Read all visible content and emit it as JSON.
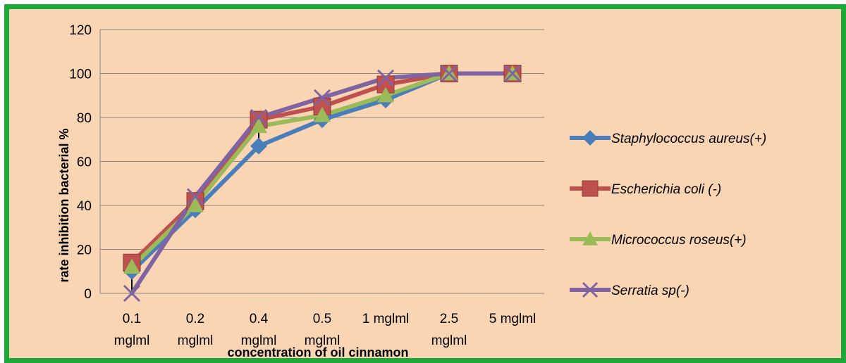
{
  "chart_data": {
    "type": "line",
    "title": "",
    "xlabel": "concentration of oil cinnamon",
    "ylabel": "rate inhibition bacterial %",
    "categories": [
      [
        "0.1",
        "mglml"
      ],
      [
        "0.2",
        "mglml"
      ],
      [
        "0.4",
        "mglml"
      ],
      [
        "0.5",
        "mglml"
      ],
      [
        "1 mglml"
      ],
      [
        "2.5",
        "mglml"
      ],
      [
        "5 mglml"
      ]
    ],
    "yticks": [
      "0",
      "20",
      "40",
      "60",
      "80",
      "100",
      "120"
    ],
    "ylim": [
      0,
      120
    ],
    "grid": true,
    "legend_position": "right",
    "series": [
      {
        "name": "Staphylococcus aureus(+)",
        "color": "#4a7ebb",
        "marker": "diamond",
        "values": [
          10,
          38,
          67,
          79,
          88,
          100,
          100
        ]
      },
      {
        "name": "Escherichia coli  (-)",
        "color": "#c0504d",
        "marker": "square",
        "values": [
          14,
          42,
          79,
          85,
          95,
          100,
          100
        ]
      },
      {
        "name": "Micrococcus roseus(+)",
        "color": "#9bbb59",
        "marker": "triangle",
        "values": [
          12,
          40,
          76,
          81,
          90,
          100,
          100
        ]
      },
      {
        "name": "Serratia sp(-)",
        "color": "#8064a2",
        "marker": "x",
        "values": [
          0,
          44,
          80,
          89,
          98,
          100,
          100
        ]
      }
    ],
    "error_bars": {
      "color": "#000000",
      "low": [
        0,
        36,
        67,
        79,
        88,
        100,
        100
      ],
      "high": [
        15,
        46,
        80,
        89,
        98,
        100,
        100
      ]
    }
  }
}
